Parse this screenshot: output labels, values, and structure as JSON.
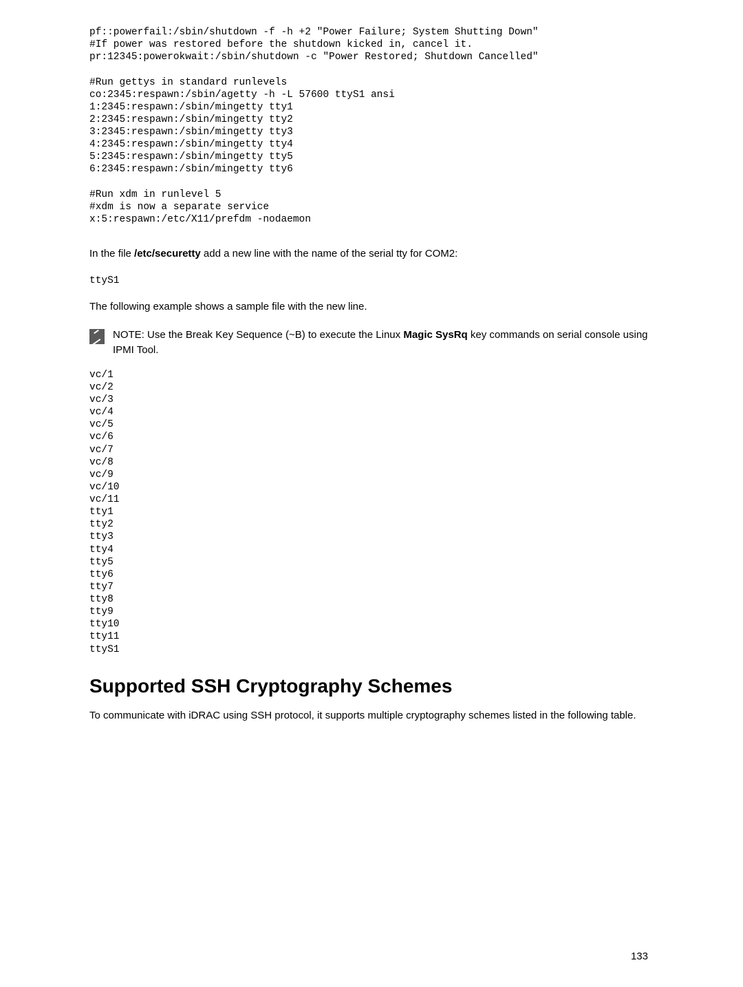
{
  "code_block_1": "pf::powerfail:/sbin/shutdown -f -h +2 \"Power Failure; System Shutting Down\"\n#If power was restored before the shutdown kicked in, cancel it.\npr:12345:powerokwait:/sbin/shutdown -c \"Power Restored; Shutdown Cancelled\"\n\n#Run gettys in standard runlevels\nco:2345:respawn:/sbin/agetty -h -L 57600 ttyS1 ansi\n1:2345:respawn:/sbin/mingetty tty1\n2:2345:respawn:/sbin/mingetty tty2\n3:2345:respawn:/sbin/mingetty tty3\n4:2345:respawn:/sbin/mingetty tty4\n5:2345:respawn:/sbin/mingetty tty5\n6:2345:respawn:/sbin/mingetty tty6\n\n#Run xdm in runlevel 5\n#xdm is now a separate service\nx:5:respawn:/etc/X11/prefdm -nodaemon",
  "paragraph_1_prefix": "In the file ",
  "paragraph_1_bold": "/etc/securetty",
  "paragraph_1_suffix": " add a new line with the name of the serial tty for COM2:",
  "tty_code": "ttyS1",
  "paragraph_2": "The following example shows a sample file with the new line.",
  "note_prefix": "NOTE:",
  "note_mid_1": " Use the Break Key Sequence (~B) to execute the Linux ",
  "note_bold": "Magic SysRq",
  "note_mid_2": " key commands on serial console using IPMI Tool.",
  "tty_list": "vc/1\nvc/2\nvc/3\nvc/4\nvc/5\nvc/6\nvc/7\nvc/8\nvc/9\nvc/10\nvc/11\ntty1\ntty2\ntty3\ntty4\ntty5\ntty6\ntty7\ntty8\ntty9\ntty10\ntty11\nttyS1",
  "heading": "Supported SSH Cryptography Schemes",
  "paragraph_3": "To communicate with iDRAC using SSH protocol, it supports multiple cryptography schemes listed in the following table.",
  "page_number": "133"
}
